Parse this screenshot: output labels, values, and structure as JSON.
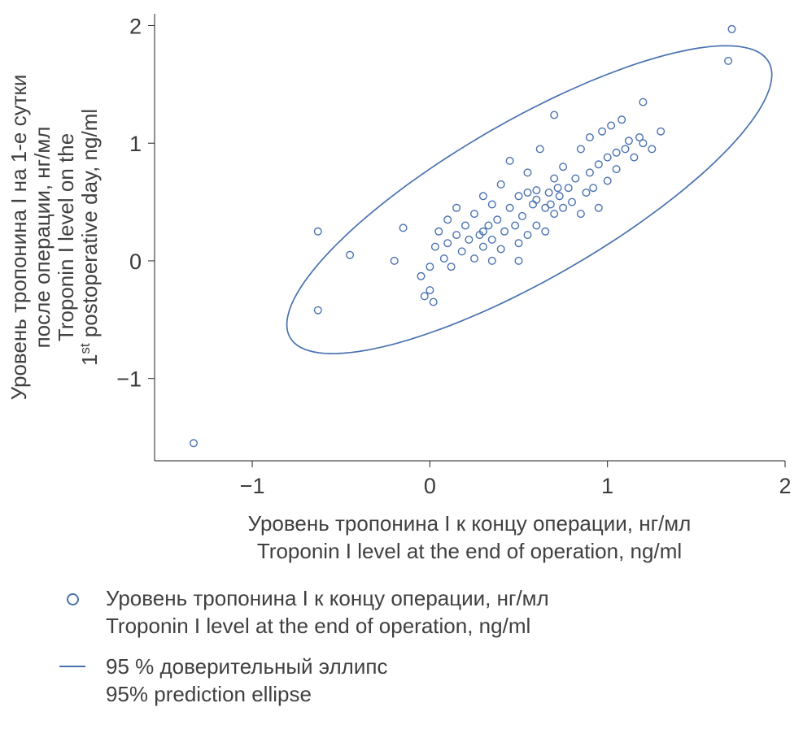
{
  "chart_data": {
    "type": "scatter",
    "title": "",
    "xlabel_lines": [
      "Уровень тропонина I к концу операции, нг/мл",
      "Troponin I level at the end of operation, ng/ml"
    ],
    "ylabel_lines": [
      "Уровень тропонина I на 1-е сутки",
      "после операции, нг/мл",
      "Troponin I level on the",
      "1st postoperative day, ng/ml"
    ],
    "xlim": [
      -1.55,
      2.0
    ],
    "ylim": [
      -1.7,
      2.1
    ],
    "xticks": [
      -1,
      0,
      1,
      2
    ],
    "yticks": [
      -1,
      0,
      1,
      2
    ],
    "grid": false,
    "marker_color": "#4a72b0",
    "ellipse_color": "#4a72b0",
    "axis_color": "#222222",
    "ellipse": {
      "cx": 0.56,
      "cy": 0.52,
      "a": 1.8,
      "b": 0.58,
      "angle_deg": 43.5
    },
    "points": [
      [
        -1.33,
        -1.55
      ],
      [
        -0.63,
        0.25
      ],
      [
        -0.63,
        -0.42
      ],
      [
        -0.45,
        0.05
      ],
      [
        1.7,
        1.97
      ],
      [
        1.68,
        1.7
      ],
      [
        -0.2,
        0.0
      ],
      [
        -0.15,
        0.28
      ],
      [
        -0.05,
        -0.13
      ],
      [
        -0.03,
        -0.3
      ],
      [
        0.0,
        -0.05
      ],
      [
        0.0,
        -0.25
      ],
      [
        0.02,
        -0.35
      ],
      [
        0.03,
        0.12
      ],
      [
        0.05,
        0.25
      ],
      [
        0.08,
        0.02
      ],
      [
        0.1,
        0.15
      ],
      [
        0.1,
        0.35
      ],
      [
        0.12,
        -0.05
      ],
      [
        0.15,
        0.22
      ],
      [
        0.15,
        0.45
      ],
      [
        0.18,
        0.08
      ],
      [
        0.2,
        0.3
      ],
      [
        0.22,
        0.18
      ],
      [
        0.25,
        0.02
      ],
      [
        0.25,
        0.4
      ],
      [
        0.28,
        0.22
      ],
      [
        0.3,
        0.12
      ],
      [
        0.3,
        0.55
      ],
      [
        0.3,
        0.25
      ],
      [
        0.33,
        0.3
      ],
      [
        0.35,
        0.18
      ],
      [
        0.35,
        0.0
      ],
      [
        0.35,
        0.48
      ],
      [
        0.38,
        0.35
      ],
      [
        0.4,
        0.1
      ],
      [
        0.4,
        0.65
      ],
      [
        0.42,
        0.25
      ],
      [
        0.45,
        0.45
      ],
      [
        0.45,
        0.85
      ],
      [
        0.48,
        0.3
      ],
      [
        0.5,
        0.15
      ],
      [
        0.5,
        0.55
      ],
      [
        0.5,
        0.0
      ],
      [
        0.52,
        0.38
      ],
      [
        0.55,
        0.22
      ],
      [
        0.55,
        0.75
      ],
      [
        0.55,
        0.58
      ],
      [
        0.58,
        0.48
      ],
      [
        0.6,
        0.3
      ],
      [
        0.6,
        0.6
      ],
      [
        0.62,
        0.95
      ],
      [
        0.65,
        0.45
      ],
      [
        0.65,
        0.25
      ],
      [
        0.67,
        0.58
      ],
      [
        0.7,
        0.4
      ],
      [
        0.7,
        0.7
      ],
      [
        0.7,
        1.24
      ],
      [
        0.73,
        0.55
      ],
      [
        0.75,
        0.45
      ],
      [
        0.75,
        0.8
      ],
      [
        0.78,
        0.62
      ],
      [
        0.8,
        0.5
      ],
      [
        0.82,
        0.7
      ],
      [
        0.85,
        0.4
      ],
      [
        0.85,
        0.95
      ],
      [
        0.88,
        0.58
      ],
      [
        0.9,
        0.75
      ],
      [
        0.9,
        1.05
      ],
      [
        0.92,
        0.62
      ],
      [
        0.95,
        0.45
      ],
      [
        0.95,
        0.82
      ],
      [
        0.97,
        1.1
      ],
      [
        1.0,
        0.68
      ],
      [
        1.0,
        0.88
      ],
      [
        1.02,
        1.15
      ],
      [
        1.05,
        0.78
      ],
      [
        1.05,
        0.92
      ],
      [
        1.08,
        1.2
      ],
      [
        1.1,
        0.95
      ],
      [
        1.12,
        1.02
      ],
      [
        1.15,
        0.88
      ],
      [
        1.18,
        1.05
      ],
      [
        1.2,
        1.0
      ],
      [
        1.2,
        1.35
      ],
      [
        1.25,
        0.95
      ],
      [
        1.3,
        1.1
      ],
      [
        0.6,
        0.52
      ],
      [
        0.68,
        0.48
      ],
      [
        0.72,
        0.62
      ]
    ],
    "legend": [
      {
        "marker": "circle",
        "lines": [
          "Уровень тропонина I к концу операции, нг/мл",
          "Troponin I level at the end of operation, ng/ml"
        ]
      },
      {
        "marker": "line",
        "lines": [
          "95 % доверительный эллипс",
          "95% prediction ellipse"
        ]
      }
    ]
  }
}
